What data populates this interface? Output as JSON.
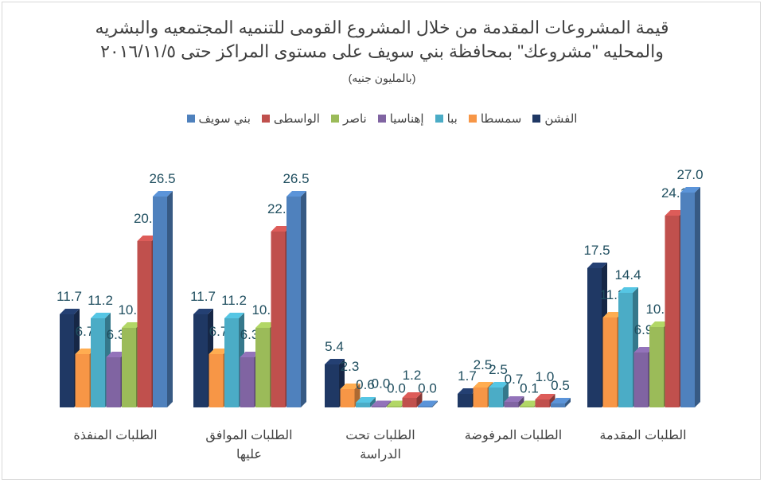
{
  "title": {
    "line1": "قيمة المشروعات المقدمة من خلال المشروع القومى للتنميه المجتمعيه والبشريه",
    "line2": "والمحليه \"مشروعك\" بمحافظة بني سويف على مستوى المراكز  حتى ٢٠١٦/١١/٥",
    "unit": "(بالمليون جنيه)"
  },
  "chart_data": {
    "type": "bar",
    "title": "قيمة المشروعات المقدمة من خلال المشروع القومى للتنميه المجتمعيه والبشريه والمحليه \"مشروعك\" بمحافظة بني سويف على مستوى المراكز حتى ٢٠١٦/١١/٥",
    "ylabel": "(بالمليون جنيه)",
    "ylim": [
      0,
      30
    ],
    "grid": false,
    "legend_position": "top",
    "categories": [
      [
        "الطلبات المنفذة"
      ],
      [
        "الطلبات الموافق",
        "عليها"
      ],
      [
        "الطلبات تحت",
        "الدراسة"
      ],
      [
        "الطلبات المرفوضة"
      ],
      [
        "الطلبات المقدمة"
      ]
    ],
    "series": [
      {
        "name": "الفشن",
        "color": "#1f3864",
        "values": [
          11.7,
          11.7,
          5.4,
          1.7,
          17.5
        ]
      },
      {
        "name": "سمسطا",
        "color": "#f79646",
        "values": [
          6.7,
          6.7,
          2.3,
          2.5,
          11.3
        ]
      },
      {
        "name": "ببا",
        "color": "#4bacc6",
        "values": [
          11.2,
          11.2,
          0.6,
          2.5,
          14.4
        ]
      },
      {
        "name": "إهناسيا",
        "color": "#8064a2",
        "values": [
          6.3,
          6.3,
          0.0,
          0.7,
          6.9
        ]
      },
      {
        "name": "ناصر",
        "color": "#9bbb59",
        "values": [
          10.0,
          10.0,
          0.0,
          0.1,
          10.1
        ]
      },
      {
        "name": "الواسطى",
        "color": "#c0504d",
        "values": [
          20.9,
          22.1,
          1.2,
          1.0,
          24.1
        ]
      },
      {
        "name": "بني سويف",
        "color": "#4f81bd",
        "values": [
          26.5,
          26.5,
          0.0,
          0.5,
          27.0
        ]
      }
    ]
  }
}
